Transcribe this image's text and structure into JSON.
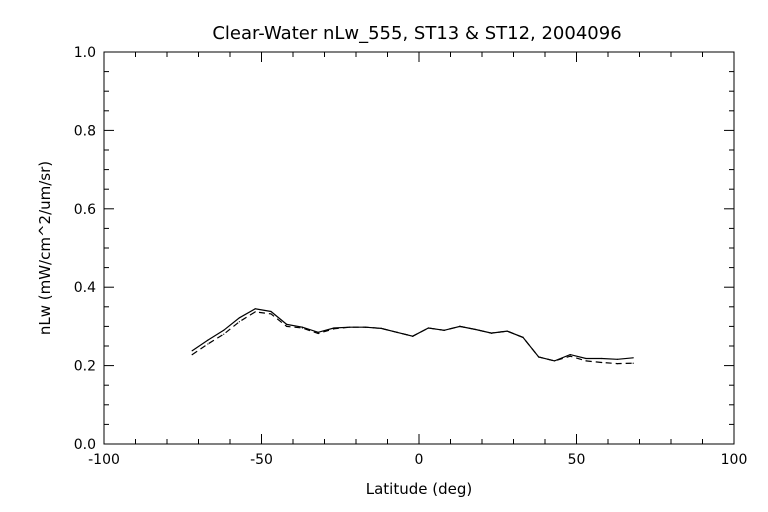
{
  "chart_data": {
    "type": "line",
    "title": "Clear-Water nLw_555, ST13 & ST12, 2004096",
    "xlabel": "Latitude (deg)",
    "ylabel": "nLw (mW/cm^2/um/sr)",
    "xlim": [
      -100,
      100
    ],
    "ylim": [
      0.0,
      1.0
    ],
    "xticks": [
      "-100",
      "-50",
      "0",
      "50",
      "100"
    ],
    "yticks": [
      "0.0",
      "0.2",
      "0.4",
      "0.6",
      "0.8",
      "1.0"
    ],
    "grid": false,
    "series": [
      {
        "style": "solid",
        "x": [
          -72,
          -67,
          -62,
          -57,
          -52,
          -47,
          -42,
          -37,
          -32,
          -27,
          -22,
          -17,
          -12,
          -7,
          -2,
          3,
          8,
          13,
          18,
          23,
          28,
          33,
          38,
          43,
          48,
          53,
          58,
          63,
          68
        ],
        "y": [
          0.238,
          0.265,
          0.29,
          0.322,
          0.345,
          0.338,
          0.305,
          0.298,
          0.285,
          0.296,
          0.298,
          0.298,
          0.295,
          0.285,
          0.275,
          0.296,
          0.29,
          0.3,
          0.292,
          0.283,
          0.288,
          0.272,
          0.222,
          0.212,
          0.228,
          0.218,
          0.218,
          0.216,
          0.22
        ]
      },
      {
        "style": "dashed",
        "x": [
          -72,
          -67,
          -62,
          -57,
          -52,
          -47,
          -42,
          -37,
          -32,
          -27,
          -22,
          -17,
          -12,
          -7,
          -2,
          3,
          8,
          13,
          18,
          23,
          28,
          33,
          38,
          43,
          48,
          53,
          58,
          63,
          68
        ],
        "y": [
          0.228,
          0.255,
          0.28,
          0.312,
          0.337,
          0.332,
          0.3,
          0.296,
          0.282,
          0.294,
          0.298,
          0.298,
          0.295,
          0.285,
          0.275,
          0.296,
          0.29,
          0.3,
          0.292,
          0.283,
          0.288,
          0.272,
          0.222,
          0.212,
          0.224,
          0.212,
          0.208,
          0.205,
          0.206
        ]
      }
    ]
  }
}
